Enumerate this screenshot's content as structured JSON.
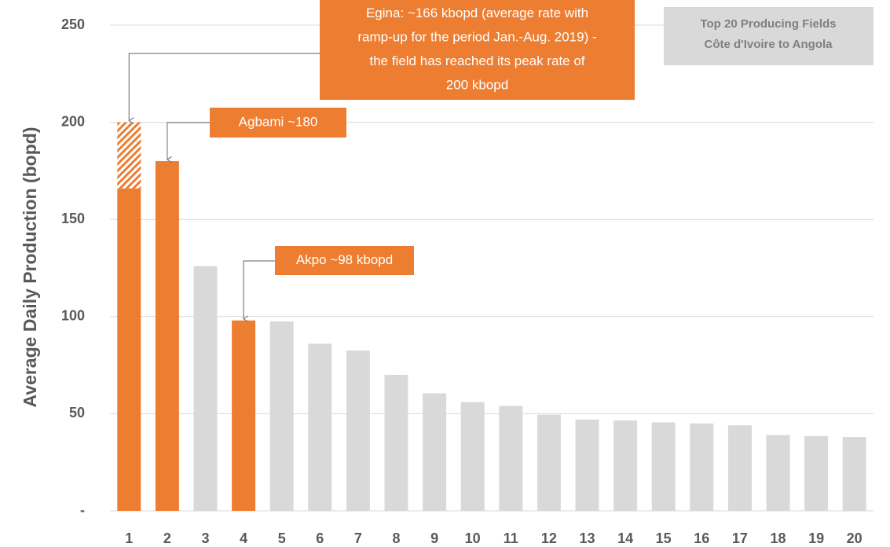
{
  "chart_data": {
    "type": "bar",
    "y_label": "Average Daily Production (bopd)",
    "categories": [
      1,
      2,
      3,
      4,
      5,
      6,
      7,
      8,
      9,
      10,
      11,
      12,
      13,
      14,
      15,
      16,
      17,
      18,
      19,
      20
    ],
    "series": [
      {
        "values": [
          166,
          180,
          126,
          98,
          97.5,
          86,
          82.5,
          70,
          60.5,
          56,
          54,
          49.5,
          47,
          46.5,
          45.5,
          45,
          44,
          39,
          38.5,
          38
        ],
        "colors": [
          "#ed7d31",
          "#ed7d31",
          "#d9d9d9",
          "#ed7d31",
          "#d9d9d9",
          "#d9d9d9",
          "#d9d9d9",
          "#d9d9d9",
          "#d9d9d9",
          "#d9d9d9",
          "#d9d9d9",
          "#d9d9d9",
          "#d9d9d9",
          "#d9d9d9",
          "#d9d9d9",
          "#d9d9d9",
          "#d9d9d9",
          "#d9d9d9",
          "#d9d9d9",
          "#d9d9d9"
        ]
      },
      {
        "values": [
          34,
          null,
          null,
          null,
          null,
          null,
          null,
          null,
          null,
          null,
          null,
          null,
          null,
          null,
          null,
          null,
          null,
          null,
          null,
          null
        ],
        "color": "#ed7d31",
        "hatched": true
      }
    ],
    "ylim": [
      0,
      250
    ],
    "yticks": [
      {
        "value": 0,
        "label": "-"
      },
      50,
      100,
      150,
      200,
      250
    ],
    "grid": true,
    "annotations": [
      {
        "lines": [
          "Egina:  ~166 kbopd (average rate with",
          "ramp-up for the period Jan.-Aug. 2019) -",
          "the field has reached its peak rate of",
          "200 kbopd"
        ]
      },
      {
        "lines": [
          "Agbami ~180"
        ]
      },
      {
        "lines": [
          "Akpo ~98 kbopd"
        ]
      }
    ],
    "info_box": [
      "Top 20 Producing Fields",
      "Côte d'Ivoire to Angola"
    ]
  }
}
